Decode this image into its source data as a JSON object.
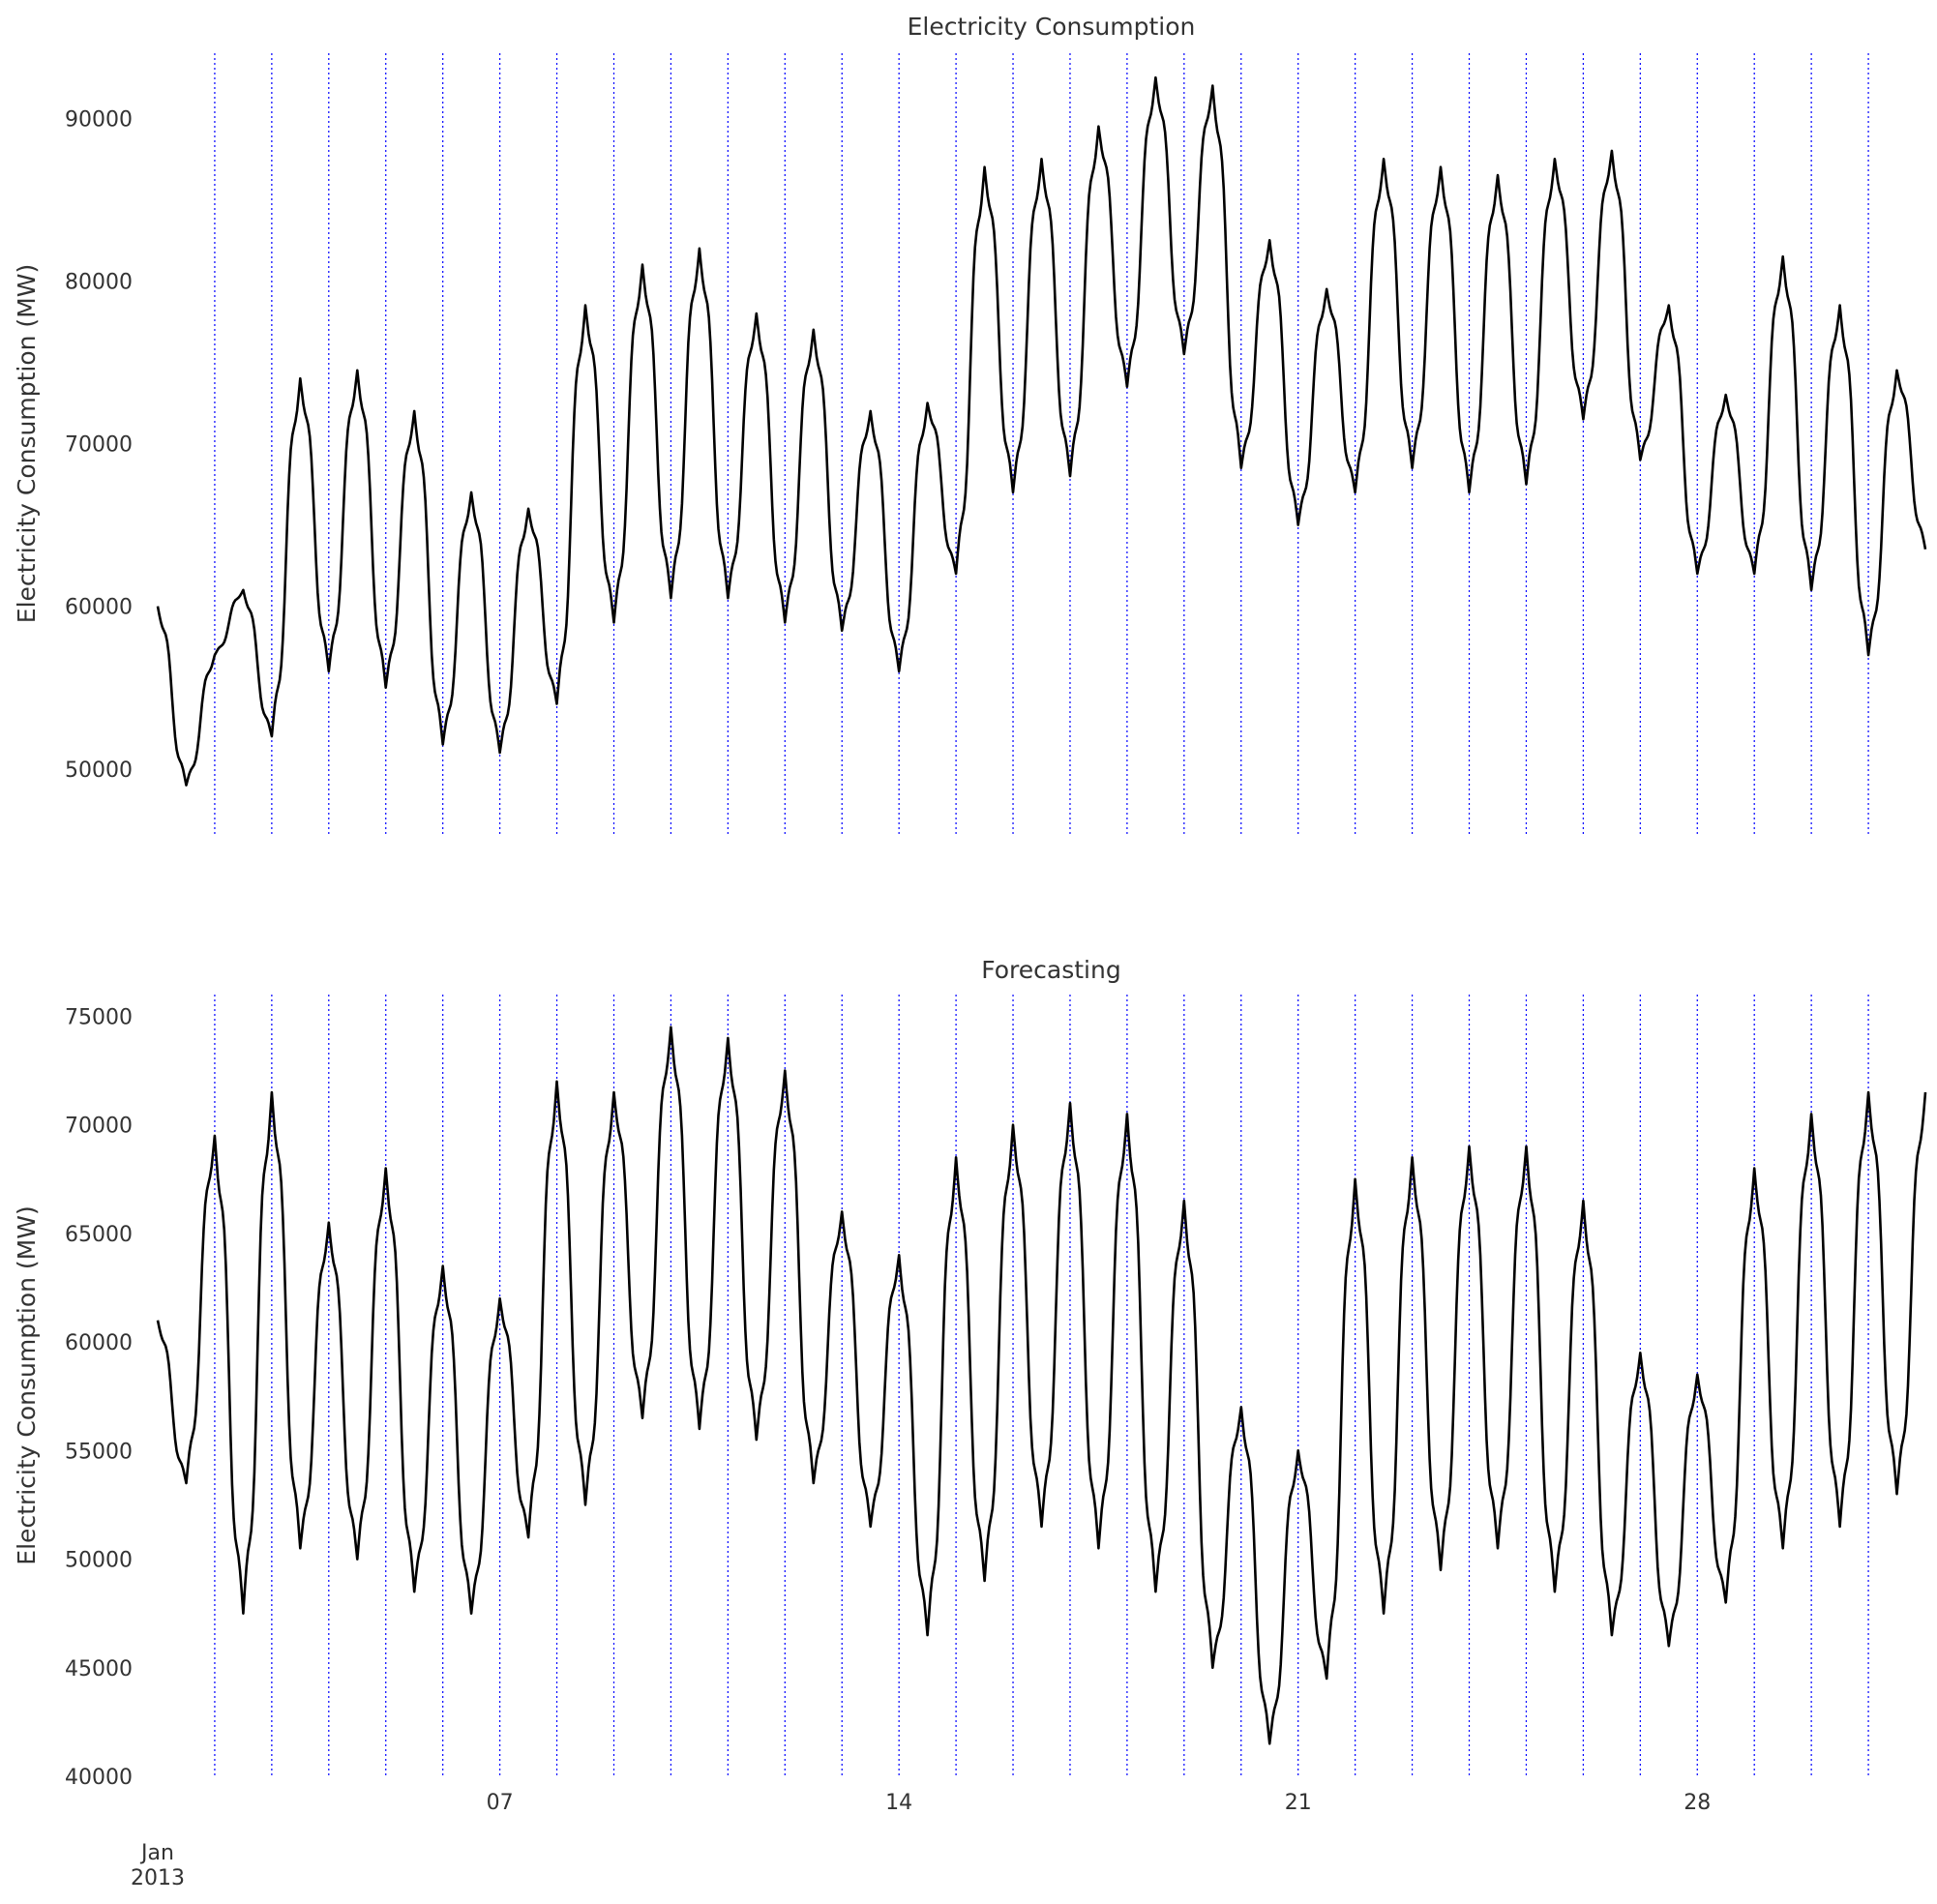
{
  "chart_data": [
    {
      "type": "line",
      "title": "Electricity Consumption",
      "ylabel": "Electricity Consumption (MW)",
      "xlabel": "",
      "ylim": [
        46000,
        94000
      ],
      "yticks": [
        "50000",
        "60000",
        "70000",
        "80000",
        "90000"
      ],
      "ytick_values": [
        50000,
        60000,
        70000,
        80000,
        90000
      ],
      "grid": "vertical dotted blue lines at each day",
      "line_color": "#000000",
      "grid_color": "#0000ff",
      "series": [
        {
          "x_days": [
            0,
            0.5,
            1,
            1.5,
            2,
            2.5,
            3,
            3.5,
            4,
            4.5,
            5,
            5.5,
            6,
            6.5,
            7,
            7.5,
            8,
            8.5,
            9,
            9.5,
            10,
            10.5,
            11,
            11.5,
            12,
            12.5,
            13,
            13.5,
            14,
            14.5,
            15,
            15.5,
            16,
            16.5,
            17,
            17.5,
            18,
            18.5,
            19,
            19.5,
            20,
            20.5,
            21,
            21.5,
            22,
            22.5,
            23,
            23.5,
            24,
            24.5,
            25,
            25.5,
            26,
            26.5,
            27,
            27.5,
            28,
            28.5,
            29,
            29.5,
            30,
            30.5,
            31
          ],
          "values": [
            60000,
            49000,
            57000,
            61000,
            52000,
            74000,
            56000,
            74500,
            55000,
            72000,
            51500,
            67000,
            51000,
            66000,
            54000,
            78500,
            59000,
            81000,
            60500,
            82000,
            60500,
            78000,
            59000,
            77000,
            58500,
            72000,
            56000,
            72500,
            62000,
            87000,
            67000,
            87500,
            68000,
            89500,
            73500,
            92500,
            75500,
            92000,
            68500,
            82500,
            65000,
            79500,
            67000,
            87500,
            68500,
            87000,
            67000,
            86500,
            67500,
            87500,
            71500,
            88000,
            69000,
            78500,
            62000,
            73000,
            62000,
            81500,
            61000,
            78500,
            57000,
            74500,
            63500
          ]
        }
      ]
    },
    {
      "type": "line",
      "title": "Forecasting",
      "ylabel": "Electricity Consumption (MW)",
      "xlabel": "",
      "ylim": [
        40000,
        76000
      ],
      "yticks": [
        "40000",
        "45000",
        "50000",
        "55000",
        "60000",
        "65000",
        "70000",
        "75000"
      ],
      "ytick_values": [
        40000,
        45000,
        50000,
        55000,
        60000,
        65000,
        70000,
        75000
      ],
      "xticks": [
        "07",
        "14",
        "21",
        "28"
      ],
      "xtick_days": [
        6,
        13,
        20,
        27
      ],
      "x_corner_label": [
        "Jan",
        "2013"
      ],
      "grid": "vertical dotted blue lines at each day",
      "line_color": "#000000",
      "grid_color": "#0000ff",
      "series": [
        {
          "x_days": [
            0,
            0.5,
            1,
            1.5,
            2,
            2.5,
            3,
            3.5,
            4,
            4.5,
            5,
            5.5,
            6,
            6.5,
            7,
            7.5,
            8,
            8.5,
            9,
            9.5,
            10,
            10.5,
            11,
            11.5,
            12,
            12.5,
            13,
            13.5,
            14,
            14.5,
            15,
            15.5,
            16,
            16.5,
            17,
            17.5,
            18,
            18.5,
            19,
            19.5,
            20,
            20.5,
            21,
            21.5,
            22,
            22.5,
            23,
            23.5,
            24,
            24.5,
            25,
            25.5,
            26,
            26.5,
            27,
            27.5,
            28,
            28.5,
            29,
            29.5,
            30,
            30.5,
            31
          ],
          "values": [
            61000,
            53500,
            69500,
            47500,
            71500,
            50500,
            65500,
            50000,
            68000,
            48500,
            63500,
            47500,
            62000,
            51000,
            72000,
            52500,
            71500,
            56500,
            74500,
            56000,
            74000,
            55500,
            72500,
            53500,
            66000,
            51500,
            64000,
            46500,
            68500,
            49000,
            70000,
            51500,
            71000,
            50500,
            70500,
            48500,
            66500,
            45000,
            57000,
            41500,
            55000,
            44500,
            67500,
            47500,
            68500,
            49500,
            69000,
            50500,
            69000,
            48500,
            66500,
            46500,
            59500,
            46000,
            58500,
            48000,
            68000,
            50500,
            70500,
            51500,
            71500,
            53000,
            71500
          ]
        }
      ]
    }
  ]
}
